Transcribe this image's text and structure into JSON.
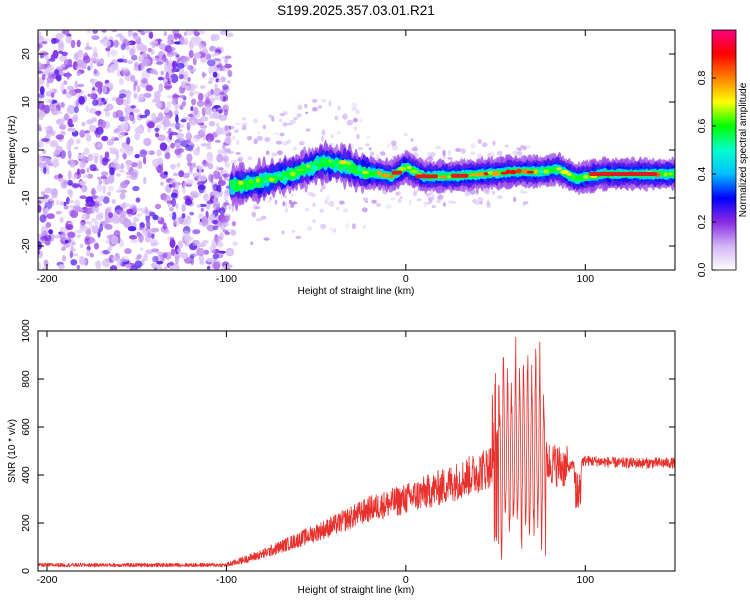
{
  "title": "S199.2025.357.03.01.R21",
  "colors": {
    "snr_line": "#e8302c",
    "ridge_core": "#d92020",
    "colormap": [
      "#ffffff",
      "#d2b4f5",
      "#8a2be2",
      "#0000ff",
      "#00bfff",
      "#00ffcc",
      "#00ff00",
      "#ffff00",
      "#ff8000",
      "#ff0000",
      "#ff0080"
    ]
  },
  "chart_data": [
    {
      "type": "heatmap",
      "title": "S199.2025.357.03.01.R21",
      "xlabel": "Height of straight line (km)",
      "ylabel": "Frequency (Hz)",
      "xlim": [
        -205,
        150
      ],
      "ylim": [
        -25,
        25
      ],
      "xticks": [
        -200,
        -100,
        0,
        100
      ],
      "yticks": [
        20,
        10,
        0,
        -10,
        -20
      ],
      "colorbar": {
        "label": "Normalized spectral amplitude",
        "range": [
          0,
          1
        ],
        "ticks": [
          0.0,
          0.2,
          0.4,
          0.6,
          0.8
        ]
      },
      "ridge": {
        "x": [
          -95,
          -80,
          -60,
          -45,
          -35,
          -25,
          -15,
          -8,
          0,
          10,
          25,
          45,
          60,
          75,
          85,
          95,
          110,
          130,
          150
        ],
        "frequency": [
          -7.5,
          -6.5,
          -4.5,
          -2.5,
          -3.0,
          -4.5,
          -5.0,
          -5.5,
          -3.5,
          -5.5,
          -5.5,
          -5.0,
          -4.5,
          -4.5,
          -4.0,
          -6.0,
          -5.0,
          -5.0,
          -5.0
        ]
      }
    },
    {
      "type": "line",
      "xlabel": "Height of straight line (km)",
      "ylabel": "SNR (10 * v/v)",
      "xlim": [
        -205,
        150
      ],
      "ylim": [
        0,
        1000
      ],
      "xticks": [
        -200,
        -100,
        0,
        100
      ],
      "yticks": [
        0,
        200,
        400,
        600,
        800,
        1000
      ],
      "series": [
        {
          "name": "SNR",
          "envelope_x": [
            -205,
            -100,
            -80,
            -60,
            -40,
            -20,
            0,
            20,
            40,
            50,
            55,
            60,
            65,
            70,
            75,
            80,
            90,
            100,
            120,
            150
          ],
          "envelope_y": [
            25,
            25,
            70,
            130,
            190,
            260,
            300,
            350,
            410,
            450,
            480,
            500,
            520,
            500,
            470,
            450,
            430,
            460,
            450,
            450
          ]
        }
      ]
    }
  ]
}
